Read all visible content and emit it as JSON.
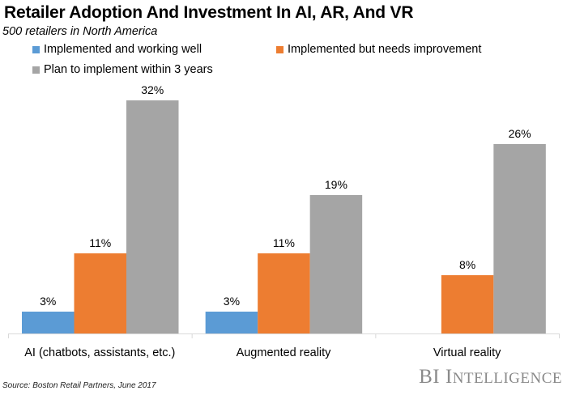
{
  "chart_data": {
    "type": "bar",
    "title": "Retailer Adoption And Investment In AI, AR, And VR",
    "subtitle": "500 retailers in North America",
    "xlabel": "",
    "ylabel": "",
    "ylim": [
      0,
      32
    ],
    "grid": false,
    "legend_position": "top",
    "categories": [
      "AI (chatbots, assistants, etc.)",
      "Augmented reality",
      "Virtual reality"
    ],
    "series": [
      {
        "name": "Implemented and working well",
        "color": "#5b9bd5",
        "values": [
          3,
          3,
          null
        ],
        "labels": [
          "3%",
          "3%",
          ""
        ]
      },
      {
        "name": "Implemented but needs improvement",
        "color": "#ed7d31",
        "values": [
          11,
          11,
          8
        ],
        "labels": [
          "11%",
          "11%",
          "8%"
        ]
      },
      {
        "name": "Plan to implement within 3 years",
        "color": "#a5a5a5",
        "values": [
          32,
          19,
          26
        ],
        "labels": [
          "32%",
          "19%",
          "26%"
        ]
      }
    ],
    "source": "Source: Boston Retail Partners, June 2017"
  },
  "brand": {
    "first": "BI",
    "second_initial": "I",
    "second_rest": "NTELLIGENCE"
  }
}
